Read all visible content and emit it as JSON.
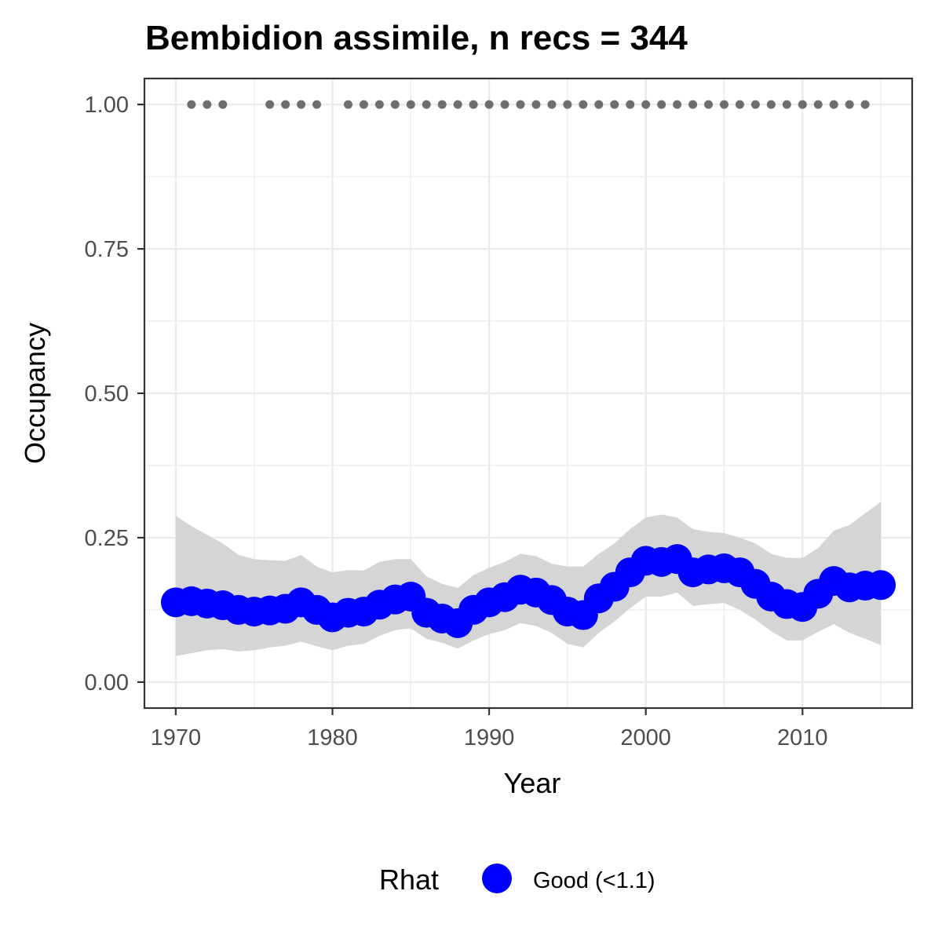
{
  "chart_data": {
    "type": "line",
    "title": "Bembidion assimile, n recs = 344",
    "xlabel": "Year",
    "ylabel": "Occupancy",
    "xlim": [
      1968,
      2017
    ],
    "ylim": [
      -0.045,
      1.045
    ],
    "x_ticks": [
      1970,
      1980,
      1990,
      2000,
      2010
    ],
    "x_tick_labels": [
      "1970",
      "1980",
      "1990",
      "2000",
      "2010"
    ],
    "y_ticks": [
      0,
      0.25,
      0.5,
      0.75,
      1.0
    ],
    "y_tick_labels": [
      "0.00",
      "0.25",
      "0.50",
      "0.75",
      "1.00"
    ],
    "grid": true,
    "legend": {
      "title": "Rhat",
      "position": "bottom",
      "entries": [
        {
          "label": "Good (<1.1)",
          "color": "#0000ff"
        }
      ]
    },
    "colors": {
      "series": "#0000ff",
      "ribbon": "#d3d3d3",
      "records": "#6e6e6e"
    },
    "series": [
      {
        "x": [
          1970,
          1971,
          1972,
          1973,
          1974,
          1975,
          1976,
          1977,
          1978,
          1979,
          1980,
          1981,
          1982,
          1983,
          1984,
          1985,
          1986,
          1987,
          1988,
          1989,
          1990,
          1991,
          1992,
          1993,
          1994,
          1995,
          1996,
          1997,
          1998,
          1999,
          2000,
          2001,
          2002,
          2003,
          2004,
          2005,
          2006,
          2007,
          2008,
          2009,
          2010,
          2011,
          2012,
          2013,
          2014,
          2015
        ],
        "values": [
          0.138,
          0.14,
          0.136,
          0.133,
          0.125,
          0.122,
          0.124,
          0.127,
          0.138,
          0.125,
          0.112,
          0.12,
          0.122,
          0.134,
          0.143,
          0.148,
          0.12,
          0.11,
          0.102,
          0.125,
          0.138,
          0.147,
          0.16,
          0.155,
          0.142,
          0.122,
          0.116,
          0.145,
          0.165,
          0.19,
          0.21,
          0.208,
          0.213,
          0.19,
          0.195,
          0.197,
          0.19,
          0.17,
          0.148,
          0.135,
          0.13,
          0.153,
          0.175,
          0.164,
          0.167,
          0.168
        ],
        "lower": [
          0.045,
          0.05,
          0.055,
          0.057,
          0.053,
          0.055,
          0.06,
          0.063,
          0.07,
          0.062,
          0.055,
          0.063,
          0.066,
          0.08,
          0.09,
          0.093,
          0.075,
          0.068,
          0.058,
          0.072,
          0.083,
          0.09,
          0.102,
          0.097,
          0.085,
          0.066,
          0.06,
          0.085,
          0.105,
          0.128,
          0.148,
          0.148,
          0.155,
          0.132,
          0.135,
          0.137,
          0.125,
          0.108,
          0.088,
          0.072,
          0.072,
          0.087,
          0.1,
          0.085,
          0.075,
          0.064
        ],
        "upper": [
          0.288,
          0.27,
          0.255,
          0.24,
          0.22,
          0.213,
          0.211,
          0.21,
          0.22,
          0.2,
          0.19,
          0.194,
          0.193,
          0.208,
          0.213,
          0.213,
          0.183,
          0.17,
          0.163,
          0.185,
          0.198,
          0.208,
          0.222,
          0.218,
          0.205,
          0.2,
          0.2,
          0.222,
          0.24,
          0.265,
          0.285,
          0.29,
          0.285,
          0.265,
          0.26,
          0.258,
          0.25,
          0.24,
          0.222,
          0.215,
          0.215,
          0.232,
          0.262,
          0.272,
          0.292,
          0.312
        ]
      },
      {
        "x": [
          1971,
          1972,
          1973,
          1976,
          1977,
          1978,
          1979,
          1981,
          1982,
          1983,
          1984,
          1985,
          1986,
          1987,
          1988,
          1989,
          1990,
          1991,
          1992,
          1993,
          1994,
          1995,
          1996,
          1997,
          1998,
          1999,
          2000,
          2001,
          2002,
          2003,
          2004,
          2005,
          2006,
          2007,
          2008,
          2009,
          2010,
          2011,
          2012,
          2013,
          2014
        ],
        "values": [
          1,
          1,
          1,
          1,
          1,
          1,
          1,
          1,
          1,
          1,
          1,
          1,
          1,
          1,
          1,
          1,
          1,
          1,
          1,
          1,
          1,
          1,
          1,
          1,
          1,
          1,
          1,
          1,
          1,
          1,
          1,
          1,
          1,
          1,
          1,
          1,
          1,
          1,
          1,
          1,
          1
        ]
      }
    ]
  }
}
